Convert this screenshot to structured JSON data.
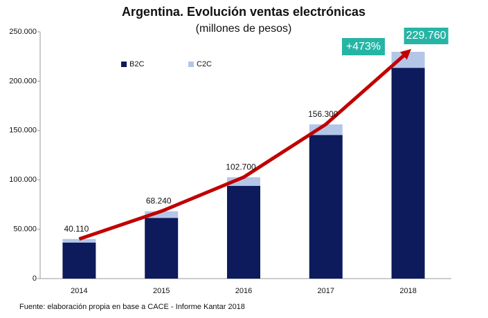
{
  "chart_data": {
    "type": "bar",
    "stacked": true,
    "title": "Argentina. Evolución ventas electrónicas",
    "subtitle": "(millones de pesos)",
    "categories": [
      "2014",
      "2015",
      "2016",
      "2017",
      "2018"
    ],
    "series": [
      {
        "name": "B2C",
        "color": "#0d1a5c",
        "values": [
          36500,
          61500,
          94000,
          145500,
          213500
        ]
      },
      {
        "name": "C2C",
        "color": "#b4c6e7",
        "values": [
          3610,
          6740,
          8700,
          10800,
          16260
        ]
      }
    ],
    "totals": {
      "color": "#c00000",
      "values": [
        40110,
        68240,
        102700,
        156300,
        229760
      ],
      "value_labels": [
        "40.110",
        "68.240",
        "102.700",
        "156.300",
        "229.760"
      ]
    },
    "annotation": "+473%",
    "ylim": [
      0,
      250000
    ],
    "yticks": [
      0,
      {
        "value": 50000,
        "label": "50.000"
      },
      {
        "value": 100000,
        "label": "100.000"
      },
      {
        "value": 150000,
        "label": "150.000"
      },
      {
        "value": 200000,
        "label": "200.000"
      },
      {
        "value": 250000,
        "label": "250.000"
      }
    ],
    "grid": false,
    "legend": "top-left",
    "source": "Fuente: elaboración propia en base a CACE - Informe Kantar 2018"
  }
}
